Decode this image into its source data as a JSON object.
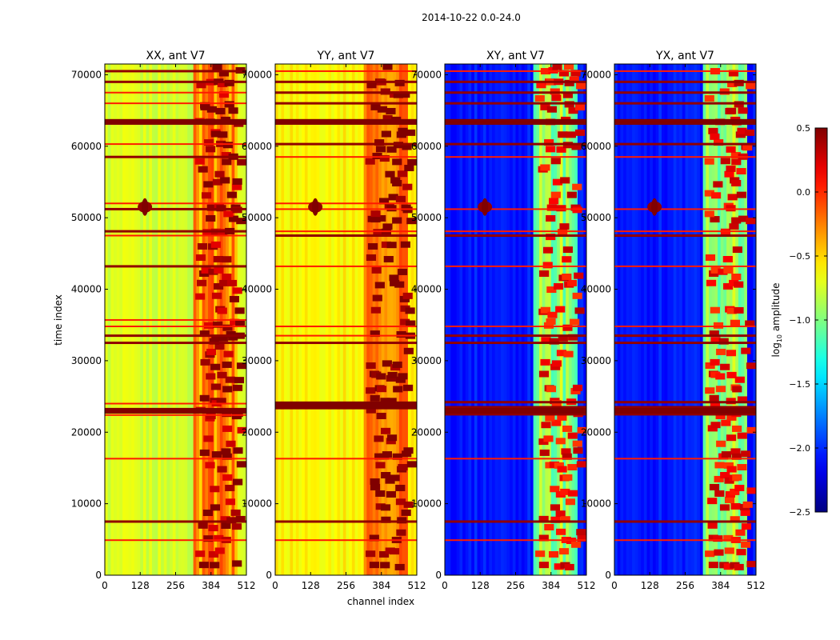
{
  "figure": {
    "suptitle": "2014-10-22 0.0-24.0",
    "xlabel": "channel index",
    "ylabel": "time index"
  },
  "chart_data": {
    "type": "heatmap",
    "title": "2014-10-22 0.0-24.0",
    "xlabel": "channel index",
    "ylabel": "time index",
    "xlim": [
      0,
      512
    ],
    "ylim": [
      0,
      71500
    ],
    "xticks": [
      0,
      128,
      256,
      384,
      512
    ],
    "yticks": [
      0,
      10000,
      20000,
      30000,
      40000,
      50000,
      60000,
      70000
    ],
    "colormap": "jet",
    "colorbar": {
      "label": "log10 amplitude",
      "label_main": "log",
      "label_sub": "10",
      "label_rest": " amplitude",
      "vmin": -2.5,
      "vmax": 0.5,
      "ticks": [
        0.5,
        0.0,
        -0.5,
        -1.0,
        -1.5,
        -2.0,
        -2.5
      ],
      "tick_labels": [
        "0.5",
        "0.0",
        "−0.5",
        "−1.0",
        "−1.5",
        "−2.0",
        "−2.5"
      ]
    },
    "rfi_band_channels": [
      325,
      480
    ],
    "high_amplitude_feature": {
      "channel": 145,
      "time": 51500
    },
    "panels": [
      {
        "title": "XX, ant V7",
        "base_level": -0.75,
        "horizontal_lines": [
          4900,
          7500,
          16300,
          22400,
          23000,
          24000,
          32500,
          33500,
          34800,
          35700,
          43200,
          47500,
          48100,
          51200,
          52000,
          58500,
          60300,
          63400,
          66000,
          67500,
          69000,
          70500
        ]
      },
      {
        "title": "YY, ant V7",
        "base_level": -0.6,
        "horizontal_lines": [
          4900,
          7500,
          16300,
          23500,
          24000,
          32500,
          33500,
          34800,
          43200,
          47500,
          48100,
          51200,
          52000,
          58500,
          60300,
          63400,
          66000,
          67500,
          69000,
          70500
        ]
      },
      {
        "title": "XY, ant V7",
        "base_level": -2.05,
        "horizontal_lines": [
          4900,
          7500,
          16300,
          22500,
          23500,
          24200,
          32500,
          33500,
          34800,
          43200,
          47500,
          48100,
          51200,
          58500,
          60300,
          63400,
          66000,
          67500,
          69000,
          70500
        ]
      },
      {
        "title": "YX, ant V7",
        "base_level": -2.05,
        "horizontal_lines": [
          4900,
          7500,
          16300,
          22500,
          23500,
          24200,
          32500,
          33500,
          34800,
          43200,
          47500,
          48100,
          51200,
          58500,
          60300,
          63400,
          66000,
          67500,
          69000,
          70500
        ]
      }
    ]
  }
}
